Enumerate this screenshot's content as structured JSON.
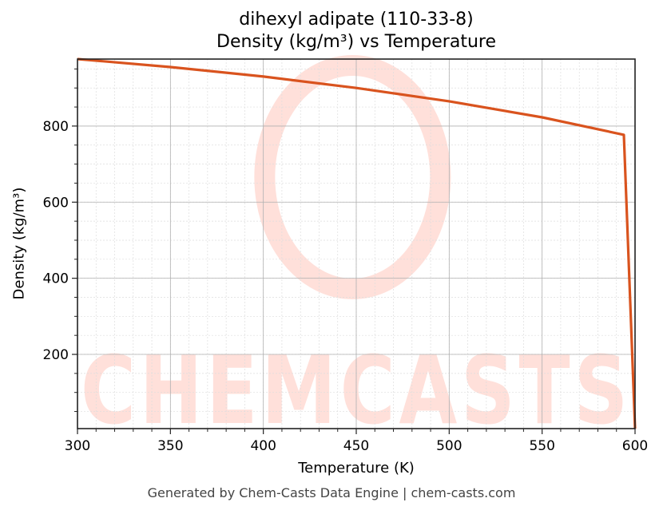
{
  "chart_data": {
    "type": "line",
    "title": "dihexyl adipate (110-33-8)",
    "subtitle": "Density (kg/m³) vs Temperature",
    "xlabel": "Temperature (K)",
    "ylabel": "Density (kg/m³)",
    "xlim": [
      300,
      600
    ],
    "ylim": [
      5,
      976
    ],
    "x_ticks": [
      300,
      350,
      400,
      450,
      500,
      550,
      600
    ],
    "y_ticks": [
      200,
      400,
      600,
      800
    ],
    "grid": {
      "major": true,
      "minor": true
    },
    "legend": null,
    "series": [
      {
        "name": "Density",
        "color": "#d9531e",
        "x": [
          300,
          350,
          400,
          450,
          500,
          550,
          594,
          600
        ],
        "y": [
          976,
          955,
          930,
          900,
          865,
          823,
          777,
          5
        ]
      }
    ],
    "watermark": "CHEMCASTS"
  },
  "header": {
    "title": "dihexyl adipate (110-33-8)",
    "subtitle": "Density (kg/m³) vs Temperature"
  },
  "axes": {
    "xlabel": "Temperature (K)",
    "ylabel": "Density (kg/m³)",
    "x_tick_labels": [
      "300",
      "350",
      "400",
      "450",
      "500",
      "550",
      "600"
    ],
    "y_tick_labels": [
      "200",
      "400",
      "600",
      "800"
    ]
  },
  "watermark": {
    "text": "CHEMCASTS",
    "color": "#ffe0da"
  },
  "footer": {
    "text": "Generated by Chem-Casts Data Engine | chem-casts.com"
  },
  "colors": {
    "line": "#d9531e",
    "axis": "#222222",
    "major_grid": "#b0b0b0",
    "minor_grid": "#dddddd",
    "footer": "#444444"
  }
}
